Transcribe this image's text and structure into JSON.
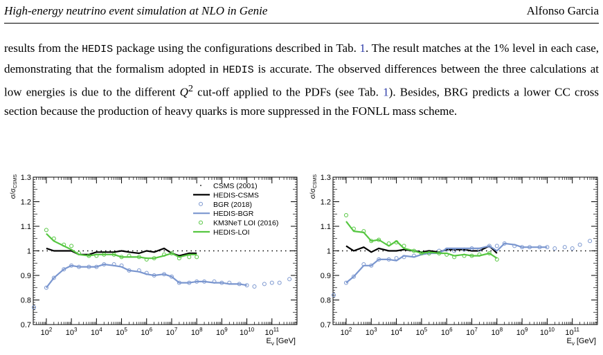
{
  "header": {
    "title": "High-energy neutrino event simulation at NLO in Genie",
    "author": "Alfonso Garcia"
  },
  "paragraph": {
    "s1a": "results from the ",
    "s1code": "HEDIS",
    "s1b": " package using the configurations described in Tab. ",
    "s1ref": "1",
    "s1c": ". The result matches at the 1% level in each case, demonstrating that the formalism adopted in ",
    "s2code": "HEDIS",
    "s2a": " is accurate. The observed differences between the three calculations at low energies is due to the different ",
    "s2q": "Q",
    "s2sup": "2",
    "s2b": " cut-off applied to the PDFs (see Tab. ",
    "s2ref": "1",
    "s2c": "). Besides, BRG predicts a lower CC cross section because the production of heavy quarks is more suppressed in the FONLL mass scheme."
  },
  "colors": {
    "csms": "#000000",
    "bgr": "#7a96cf",
    "loi": "#55c640"
  },
  "chart_data": [
    {
      "type": "line",
      "xscale": "log",
      "xlim": [
        30,
        1000000000000.0
      ],
      "ylim": [
        0.7,
        1.3
      ],
      "xlabel": "Eν [GeV]",
      "ylabel": "σ/σCSMS",
      "yticks": [
        "0.7",
        "0.8",
        "0.9",
        "1",
        "1.1",
        "1.2",
        "1.3"
      ],
      "xticks": [
        "10^2",
        "10^3",
        "10^4",
        "10^5",
        "10^6",
        "10^7",
        "10^8",
        "10^9",
        "10^10",
        "10^11"
      ],
      "legend_position": "top-right",
      "legend": [
        "CSMS (2001)",
        "HEDIS-CSMS",
        "BGR (2018)",
        "HEDIS-BGR",
        "KM3NeT LOI (2016)",
        "HEDIS-LOI"
      ],
      "series": [
        {
          "name": "CSMS (2001)",
          "style": "dotted",
          "x": [
            30,
            1000000000000.0
          ],
          "y": [
            1.0,
            1.0
          ]
        },
        {
          "name": "HEDIS-CSMS",
          "style": "line",
          "x": [
            100,
            200,
            500,
            1000,
            2000,
            5000,
            10000,
            20000,
            50000,
            100000,
            200000,
            500000,
            1000000,
            2000000,
            5000000,
            10000000,
            20000000,
            50000000,
            100000000
          ],
          "y": [
            1.01,
            1.0,
            1.0,
            1.0,
            0.985,
            0.985,
            0.995,
            0.995,
            0.995,
            1.0,
            0.995,
            0.99,
            1.0,
            0.995,
            1.01,
            0.99,
            0.98,
            0.99,
            0.99
          ]
        },
        {
          "name": "BGR (2018)",
          "style": "markers",
          "x": [
            32,
            100,
            200,
            500,
            1000,
            2000,
            5000,
            10000,
            20000,
            50000,
            100000,
            200000,
            500000,
            1000000,
            2000000,
            5000000,
            10000000,
            20000000,
            50000000,
            100000000,
            200000000,
            500000000,
            1000000000,
            2000000000,
            5000000000,
            10000000000,
            20000000000,
            50000000000,
            100000000000,
            200000000000,
            500000000000
          ],
          "y": [
            0.77,
            0.85,
            0.89,
            0.925,
            0.94,
            0.935,
            0.935,
            0.935,
            0.945,
            0.945,
            0.94,
            0.92,
            0.92,
            0.91,
            0.9,
            0.905,
            0.895,
            0.87,
            0.87,
            0.875,
            0.875,
            0.875,
            0.87,
            0.87,
            0.865,
            0.86,
            0.855,
            0.865,
            0.87,
            0.87,
            0.885
          ]
        },
        {
          "name": "HEDIS-BGR",
          "style": "line",
          "x": [
            100,
            200,
            500,
            1000,
            2000,
            5000,
            10000,
            20000,
            50000,
            100000,
            200000,
            500000,
            1000000,
            2000000,
            5000000,
            10000000,
            20000000,
            50000000,
            100000000,
            200000000,
            500000000,
            1000000000,
            2000000000,
            5000000000,
            10000000000
          ],
          "y": [
            0.85,
            0.89,
            0.925,
            0.94,
            0.935,
            0.935,
            0.935,
            0.945,
            0.94,
            0.935,
            0.92,
            0.915,
            0.905,
            0.9,
            0.905,
            0.895,
            0.87,
            0.87,
            0.875,
            0.875,
            0.87,
            0.87,
            0.865,
            0.865,
            0.86
          ]
        },
        {
          "name": "KM3NeT LOI (2016)",
          "style": "markers",
          "x": [
            100,
            200,
            500,
            1000,
            2000,
            5000,
            10000,
            20000,
            50000,
            100000,
            200000,
            500000,
            1000000,
            2000000,
            5000000,
            10000000,
            20000000,
            50000000,
            100000000
          ],
          "y": [
            1.085,
            1.05,
            1.025,
            1.02,
            0.99,
            0.98,
            0.98,
            0.985,
            0.985,
            0.975,
            0.98,
            0.975,
            0.965,
            0.97,
            0.985,
            0.99,
            0.97,
            0.975,
            0.975
          ]
        },
        {
          "name": "HEDIS-LOI",
          "style": "line",
          "x": [
            100,
            200,
            500,
            1000,
            2000,
            5000,
            10000,
            20000,
            50000,
            100000,
            200000,
            500000,
            1000000,
            2000000,
            5000000,
            10000000,
            20000000,
            50000000,
            100000000
          ],
          "y": [
            1.07,
            1.04,
            1.02,
            1.005,
            0.985,
            0.98,
            0.985,
            0.985,
            0.985,
            0.975,
            0.975,
            0.975,
            0.97,
            0.97,
            0.98,
            0.99,
            0.975,
            0.985,
            0.985
          ]
        }
      ]
    },
    {
      "type": "line",
      "xscale": "log",
      "xlim": [
        30,
        1000000000000.0
      ],
      "ylim": [
        0.7,
        1.3
      ],
      "xlabel": "Eν [GeV]",
      "ylabel": "σ/σCSMS",
      "yticks": [
        "0.7",
        "0.8",
        "0.9",
        "1",
        "1.1",
        "1.2",
        "1.3"
      ],
      "xticks": [
        "10^2",
        "10^3",
        "10^4",
        "10^5",
        "10^6",
        "10^7",
        "10^8",
        "10^9",
        "10^10",
        "10^11"
      ],
      "series": [
        {
          "name": "CSMS (2001)",
          "style": "dotted",
          "x": [
            30,
            1000000000000.0
          ],
          "y": [
            1.0,
            1.0
          ]
        },
        {
          "name": "HEDIS-CSMS",
          "style": "line",
          "x": [
            100,
            200,
            500,
            1000,
            2000,
            5000,
            10000,
            20000,
            50000,
            100000,
            200000,
            500000,
            1000000,
            2000000,
            5000000,
            10000000,
            20000000,
            50000000,
            100000000
          ],
          "y": [
            1.02,
            1.0,
            1.015,
            0.995,
            1.01,
            1.0,
            1.0,
            1.005,
            1.0,
            0.995,
            1.0,
            0.995,
            1.005,
            1.005,
            1.005,
            1.0,
            1.0,
            1.02,
            0.99
          ]
        },
        {
          "name": "BGR (2018)",
          "style": "markers",
          "x": [
            32,
            100,
            200,
            500,
            1000,
            2000,
            5000,
            10000,
            20000,
            50000,
            100000,
            200000,
            500000,
            1000000,
            2000000,
            5000000,
            10000000,
            20000000,
            50000000,
            100000000,
            200000000,
            500000000,
            1000000000,
            2000000000,
            5000000000,
            10000000000,
            20000000000,
            50000000000,
            100000000000,
            200000000000,
            500000000000
          ],
          "y": [
            0.82,
            0.87,
            0.895,
            0.945,
            0.94,
            0.965,
            0.965,
            0.97,
            0.975,
            0.98,
            0.99,
            0.99,
            1.0,
            1.005,
            1.0,
            1.005,
            1.01,
            1.005,
            1.02,
            1.02,
            1.03,
            1.02,
            1.015,
            1.015,
            1.015,
            1.015,
            1.01,
            1.015,
            1.01,
            1.025,
            1.04
          ]
        },
        {
          "name": "HEDIS-BGR",
          "style": "line",
          "x": [
            100,
            200,
            500,
            1000,
            2000,
            5000,
            10000,
            20000,
            50000,
            100000,
            200000,
            500000,
            1000000,
            2000000,
            5000000,
            10000000,
            20000000,
            50000000,
            100000000,
            200000000,
            500000000,
            1000000000,
            2000000000,
            5000000000,
            10000000000
          ],
          "y": [
            0.87,
            0.895,
            0.94,
            0.94,
            0.965,
            0.965,
            0.96,
            0.98,
            0.975,
            0.985,
            0.99,
            0.99,
            1.01,
            1.01,
            1.01,
            1.01,
            1.01,
            1.02,
            1.0,
            1.03,
            1.025,
            1.015,
            1.015,
            1.015,
            1.015
          ]
        },
        {
          "name": "KM3NeT LOI (2016)",
          "style": "markers",
          "x": [
            100,
            200,
            500,
            1000,
            2000,
            5000,
            10000,
            20000,
            50000,
            100000,
            200000,
            500000,
            1000000,
            2000000,
            5000000,
            10000000,
            20000000,
            50000000,
            100000000
          ],
          "y": [
            1.145,
            1.09,
            1.08,
            1.04,
            1.045,
            1.03,
            1.035,
            1.02,
            1.0,
            0.99,
            0.99,
            0.99,
            0.985,
            0.975,
            0.98,
            0.98,
            0.985,
            0.99,
            0.965
          ]
        },
        {
          "name": "HEDIS-LOI",
          "style": "line",
          "x": [
            100,
            200,
            500,
            1000,
            2000,
            5000,
            10000,
            20000,
            50000,
            100000,
            200000,
            500000,
            1000000,
            2000000,
            5000000,
            10000000,
            20000000,
            50000000,
            100000000
          ],
          "y": [
            1.12,
            1.08,
            1.075,
            1.04,
            1.045,
            1.02,
            1.04,
            1.01,
            1.0,
            0.99,
            0.995,
            0.99,
            0.99,
            0.98,
            0.985,
            0.98,
            0.98,
            0.99,
            0.97
          ]
        }
      ]
    }
  ]
}
